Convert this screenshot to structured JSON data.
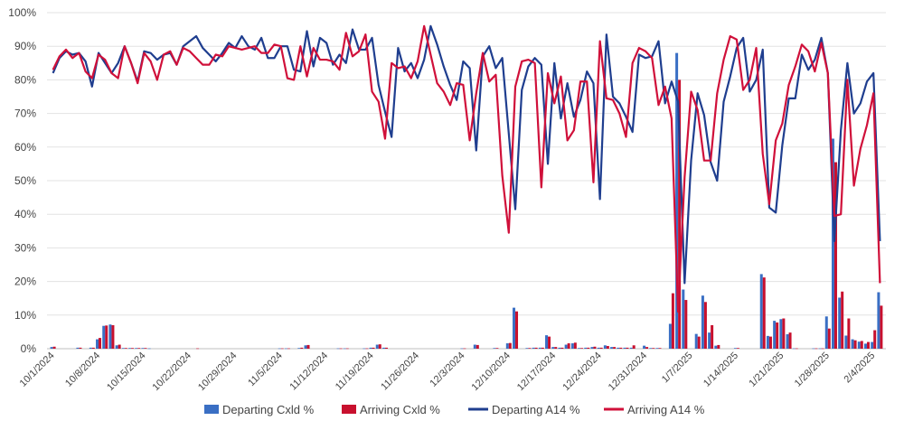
{
  "chart_data": {
    "type": "bar+line",
    "ylim": [
      0,
      100
    ],
    "yticks": [
      0,
      10,
      20,
      30,
      40,
      50,
      60,
      70,
      80,
      90,
      100
    ],
    "ytick_labels": [
      "0%",
      "10%",
      "20%",
      "30%",
      "40%",
      "50%",
      "60%",
      "70%",
      "80%",
      "90%",
      "100%"
    ],
    "x_labels": [
      "10/1/2024",
      "10/8/2024",
      "10/15/2024",
      "10/22/2024",
      "10/29/2024",
      "11/5/2024",
      "11/12/2024",
      "11/19/2024",
      "11/26/2024",
      "12/3/2024",
      "12/10/2024",
      "12/17/2024",
      "12/24/2024",
      "12/31/2024",
      "1/7/2025",
      "1/14/2025",
      "1/21/2025",
      "1/28/2025",
      "2/4/2025"
    ],
    "grid": "horizontal",
    "legend_position": "bottom",
    "colors": {
      "departing_bar": "#3a6fc4",
      "arriving_bar": "#c8102e",
      "departing_line": "#1f3e8f",
      "arriving_line": "#d0103a",
      "grid": "#e3e3e3",
      "axis": "#bfbfbf"
    },
    "series": [
      {
        "name": "Departing Cxld %",
        "kind": "bar",
        "points": [
          [
            0,
            0.5
          ],
          [
            4,
            0.3
          ],
          [
            6,
            0.3
          ],
          [
            7,
            2.8
          ],
          [
            8,
            6.8
          ],
          [
            9,
            7.2
          ],
          [
            10,
            1.0
          ],
          [
            11,
            0.2
          ],
          [
            12,
            0.2
          ],
          [
            13,
            0.2
          ],
          [
            14,
            0.2
          ],
          [
            15,
            0.1
          ],
          [
            35,
            0.1
          ],
          [
            36,
            0.1
          ],
          [
            38,
            0.2
          ],
          [
            39,
            1.0
          ],
          [
            44,
            0.1
          ],
          [
            45,
            0.1
          ],
          [
            48,
            0.1
          ],
          [
            49,
            0.3
          ],
          [
            50,
            1.2
          ],
          [
            51,
            0.3
          ],
          [
            63,
            0.1
          ],
          [
            65,
            1.2
          ],
          [
            68,
            0.2
          ],
          [
            70,
            1.6
          ],
          [
            71,
            12.2
          ],
          [
            73,
            0.2
          ],
          [
            74,
            0.3
          ],
          [
            75,
            0.3
          ],
          [
            76,
            4.0
          ],
          [
            77,
            0.5
          ],
          [
            78,
            0.3
          ],
          [
            79,
            1.2
          ],
          [
            80,
            1.6
          ],
          [
            81,
            0.2
          ],
          [
            82,
            0.3
          ],
          [
            83,
            0.5
          ],
          [
            84,
            0.3
          ],
          [
            85,
            1.0
          ],
          [
            86,
            0.5
          ],
          [
            87,
            0.3
          ],
          [
            88,
            0.3
          ],
          [
            89,
            0.3
          ],
          [
            91,
            0.9
          ],
          [
            92,
            0.2
          ],
          [
            93,
            0.2
          ],
          [
            95,
            7.4
          ],
          [
            96,
            88.0
          ],
          [
            97,
            17.6
          ],
          [
            99,
            4.4
          ],
          [
            100,
            15.8
          ],
          [
            101,
            4.8
          ],
          [
            102,
            0.9
          ],
          [
            105,
            0.2
          ],
          [
            109,
            22.2
          ],
          [
            110,
            3.8
          ],
          [
            111,
            8.3
          ],
          [
            112,
            8.8
          ],
          [
            113,
            4.3
          ],
          [
            114,
            0.1
          ],
          [
            117,
            0.1
          ],
          [
            118,
            0.1
          ],
          [
            119,
            9.6
          ],
          [
            120,
            62.5
          ],
          [
            121,
            15.2
          ],
          [
            122,
            3.9
          ],
          [
            123,
            2.8
          ],
          [
            124,
            2.1
          ],
          [
            125,
            1.5
          ],
          [
            126,
            2.0
          ],
          [
            127,
            16.8
          ]
        ]
      },
      {
        "name": "Arriving Cxld %",
        "kind": "bar",
        "points": [
          [
            0,
            0.6
          ],
          [
            4,
            0.3
          ],
          [
            6,
            0.3
          ],
          [
            7,
            3.2
          ],
          [
            8,
            6.9
          ],
          [
            9,
            7.0
          ],
          [
            10,
            1.2
          ],
          [
            11,
            0.2
          ],
          [
            12,
            0.2
          ],
          [
            13,
            0.2
          ],
          [
            14,
            0.2
          ],
          [
            22,
            0.1
          ],
          [
            35,
            0.1
          ],
          [
            36,
            0.1
          ],
          [
            38,
            0.3
          ],
          [
            39,
            1.1
          ],
          [
            44,
            0.1
          ],
          [
            45,
            0.1
          ],
          [
            48,
            0.1
          ],
          [
            49,
            0.3
          ],
          [
            50,
            1.3
          ],
          [
            51,
            0.3
          ],
          [
            63,
            0.1
          ],
          [
            65,
            1.1
          ],
          [
            68,
            0.2
          ],
          [
            70,
            1.7
          ],
          [
            71,
            11.1
          ],
          [
            73,
            0.2
          ],
          [
            74,
            0.3
          ],
          [
            75,
            0.3
          ],
          [
            76,
            3.6
          ],
          [
            77,
            0.5
          ],
          [
            78,
            0.3
          ],
          [
            79,
            1.6
          ],
          [
            80,
            1.8
          ],
          [
            81,
            0.2
          ],
          [
            82,
            0.3
          ],
          [
            83,
            0.6
          ],
          [
            84,
            0.3
          ],
          [
            85,
            0.8
          ],
          [
            86,
            0.5
          ],
          [
            87,
            0.3
          ],
          [
            88,
            0.3
          ],
          [
            89,
            1.0
          ],
          [
            91,
            0.5
          ],
          [
            92,
            0.2
          ],
          [
            93,
            0.2
          ],
          [
            95,
            16.5
          ],
          [
            96,
            80.0
          ],
          [
            97,
            14.5
          ],
          [
            99,
            3.6
          ],
          [
            100,
            13.9
          ],
          [
            101,
            7.0
          ],
          [
            102,
            1.1
          ],
          [
            105,
            0.2
          ],
          [
            109,
            21.2
          ],
          [
            110,
            3.6
          ],
          [
            111,
            7.8
          ],
          [
            112,
            9.0
          ],
          [
            113,
            4.8
          ],
          [
            114,
            0.1
          ],
          [
            117,
            0.1
          ],
          [
            118,
            0.1
          ],
          [
            119,
            6.0
          ],
          [
            120,
            55.5
          ],
          [
            121,
            17.0
          ],
          [
            122,
            9.0
          ],
          [
            123,
            2.5
          ],
          [
            124,
            2.3
          ],
          [
            125,
            2.0
          ],
          [
            126,
            5.5
          ],
          [
            127,
            12.8
          ]
        ]
      },
      {
        "name": "Departing A14 %",
        "kind": "line",
        "values": [
          82,
          86.5,
          88.5,
          87.5,
          88,
          85.5,
          78,
          88,
          85,
          82,
          85,
          90,
          85,
          79.5,
          88.5,
          88,
          86,
          87.5,
          88,
          84.5,
          90,
          91.5,
          93,
          89.5,
          87.5,
          85.5,
          88,
          91,
          89.5,
          93,
          90,
          89,
          92.5,
          86.5,
          86.5,
          90,
          90,
          83,
          82.5,
          94.5,
          84,
          92.5,
          91,
          84.5,
          87.5,
          85,
          95,
          89,
          89,
          92.5,
          78.5,
          70.5,
          63,
          89.5,
          82.5,
          85,
          80.5,
          86,
          96,
          90.5,
          84,
          78.5,
          74,
          85.5,
          83.5,
          59,
          87,
          90,
          83.5,
          86.5,
          64,
          41.5,
          77,
          84,
          86.5,
          84.5,
          55,
          85,
          68.5,
          79,
          69,
          74,
          82.5,
          79,
          44.5,
          93.5,
          75,
          73,
          69,
          64.5,
          87.5,
          86.5,
          87,
          91.5,
          73,
          79.5,
          73.5,
          19.5,
          56,
          76,
          69.5,
          55.5,
          50,
          73.5,
          81,
          89.5,
          92.5,
          76.5,
          80,
          89,
          42,
          40.5,
          60.5,
          74.5,
          74.5,
          87.5,
          83,
          86,
          92.5,
          82,
          32,
          65,
          85,
          70,
          73,
          79.5,
          82,
          32
        ]
      },
      {
        "name": "Arriving A14 %",
        "kind": "line",
        "values": [
          83,
          87,
          89,
          86.5,
          88,
          82.5,
          80.5,
          87.5,
          86,
          82,
          80.5,
          90,
          85,
          79,
          88,
          85.5,
          80,
          87.5,
          88.5,
          84.5,
          89.5,
          88.5,
          86.5,
          84.5,
          84.5,
          87.5,
          87,
          90,
          89.5,
          89,
          89.5,
          90,
          88,
          88,
          90.5,
          90,
          80.5,
          80,
          90,
          81,
          89.5,
          86,
          86,
          85.5,
          83,
          94,
          87,
          88.5,
          93.5,
          76.5,
          73.5,
          62.5,
          85,
          83.5,
          84,
          80.5,
          85.5,
          96,
          87.5,
          79,
          76.5,
          72.5,
          79,
          78.5,
          62,
          76,
          88,
          79.5,
          81.5,
          51.5,
          34.5,
          78,
          85.5,
          86,
          85,
          48,
          82,
          73,
          81,
          62,
          65,
          79.5,
          79.5,
          49.5,
          91.5,
          74.5,
          74,
          70,
          63,
          85,
          89.5,
          88.5,
          86.5,
          72.5,
          78,
          68.5,
          11,
          51,
          76.5,
          71,
          56,
          56,
          76,
          86,
          93,
          92,
          77,
          80,
          89.5,
          58,
          43,
          62,
          67,
          78.5,
          84,
          90.5,
          88.5,
          82.5,
          91,
          82,
          39.5,
          40,
          80,
          48.5,
          59.5,
          66.5,
          76,
          19.5
        ]
      }
    ]
  },
  "legend": [
    {
      "label": "Departing Cxld %",
      "kind": "bar",
      "color": "#3a6fc4"
    },
    {
      "label": "Arriving Cxld %",
      "kind": "bar",
      "color": "#c8102e"
    },
    {
      "label": "Departing A14 %",
      "kind": "line",
      "color": "#1f3e8f"
    },
    {
      "label": "Arriving A14 %",
      "kind": "line",
      "color": "#d0103a"
    }
  ]
}
